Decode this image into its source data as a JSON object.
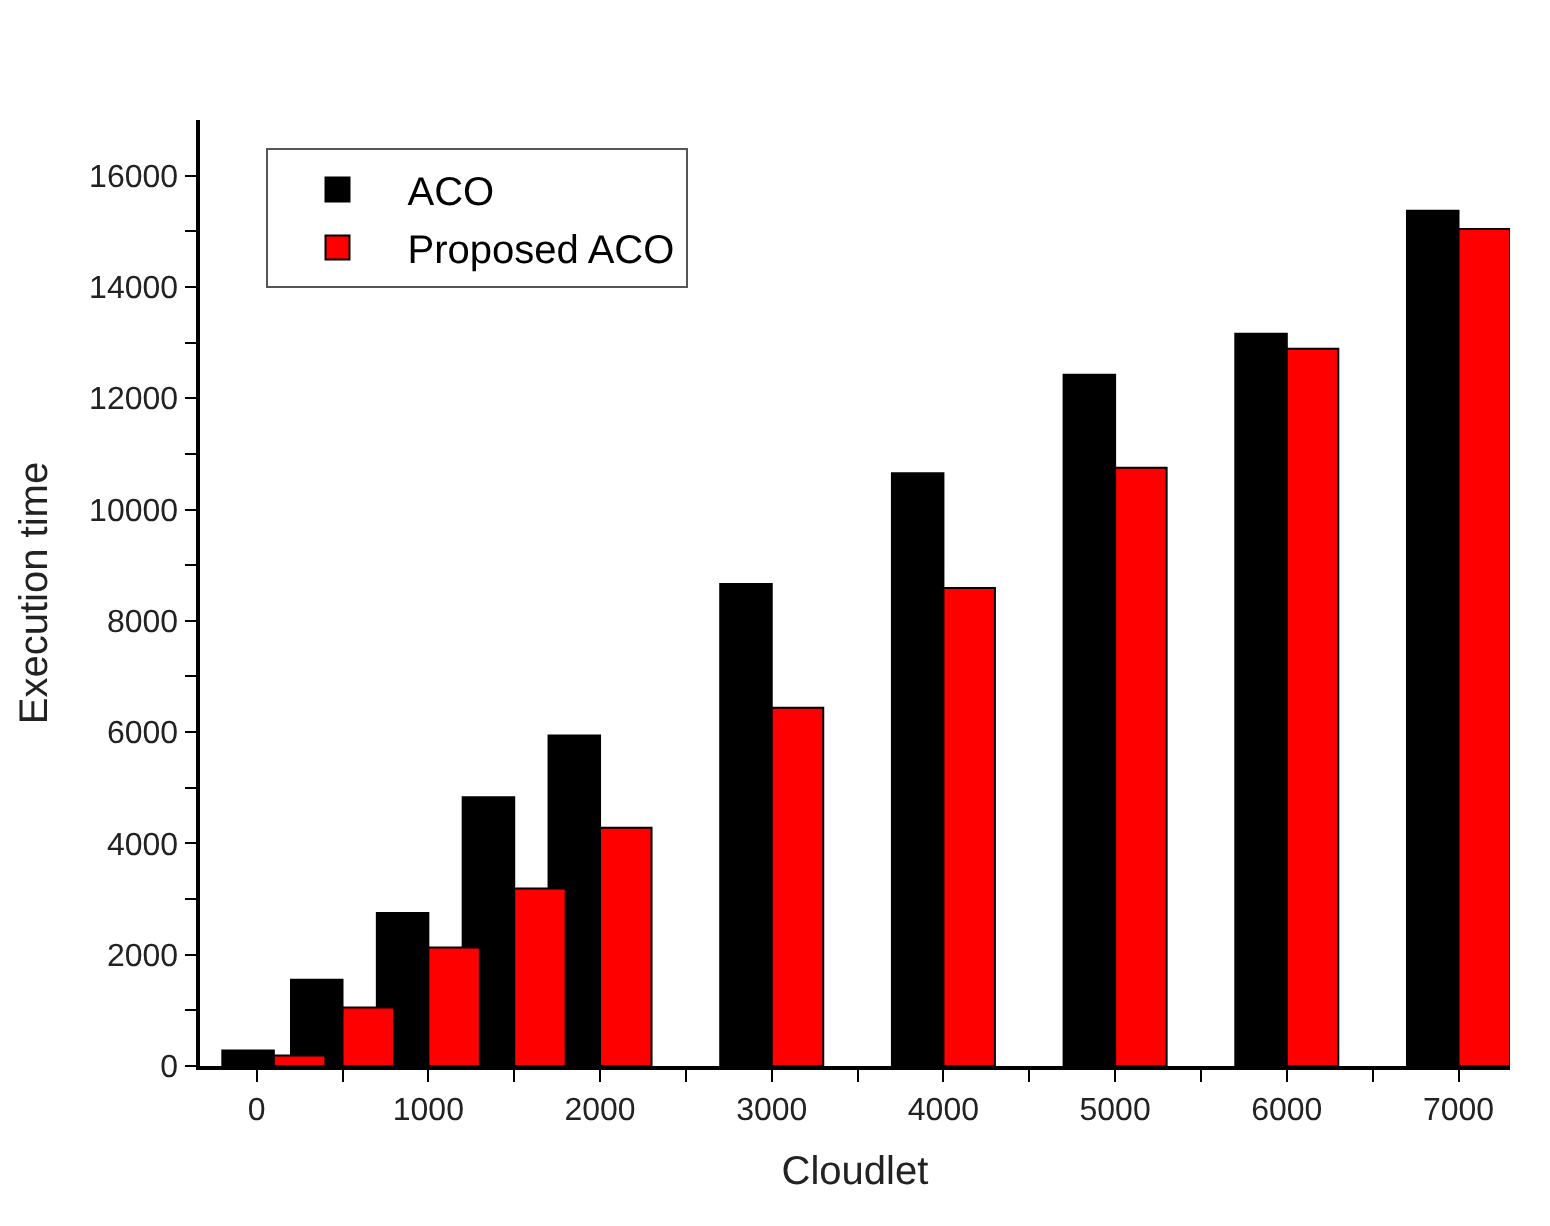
{
  "chart_data": {
    "type": "bar",
    "xlabel": "Cloudlet",
    "ylabel": "Execution time",
    "x": [
      100,
      500,
      1000,
      1500,
      2000,
      3000,
      4000,
      5000,
      6000,
      7000
    ],
    "series": [
      {
        "name": "ACO",
        "color": "#000000",
        "values": [
          280,
          1550,
          2750,
          4830,
          5940,
          8660,
          10650,
          12420,
          13160,
          15370
        ]
      },
      {
        "name": "Proposed ACO",
        "color": "#ff0000",
        "values": [
          190,
          1050,
          2130,
          3190,
          4280,
          6440,
          8590,
          10750,
          12890,
          15040
        ]
      }
    ],
    "xlim": [
      -330,
      7300
    ],
    "ylim": [
      0,
      17000
    ],
    "xticks": [
      0,
      {
        "value": 500,
        "label": null
      },
      1000,
      {
        "value": 1500,
        "label": null
      },
      2000,
      {
        "value": 2500,
        "label": null
      },
      3000,
      {
        "value": 3500,
        "label": null
      },
      4000,
      {
        "value": 4500,
        "label": null
      },
      5000,
      {
        "value": 5500,
        "label": null
      },
      6000,
      {
        "value": 6500,
        "label": null
      },
      7000
    ],
    "yticks": [
      0,
      {
        "value": 1000,
        "label": null
      },
      2000,
      {
        "value": 3000,
        "label": null
      },
      4000,
      {
        "value": 5000,
        "label": null
      },
      6000,
      {
        "value": 7000,
        "label": null
      },
      8000,
      {
        "value": 9000,
        "label": null
      },
      10000,
      {
        "value": 11000,
        "label": null
      },
      12000,
      {
        "value": 13000,
        "label": null
      },
      14000,
      {
        "value": 15000,
        "label": null
      },
      16000
    ],
    "legend": "top left"
  }
}
